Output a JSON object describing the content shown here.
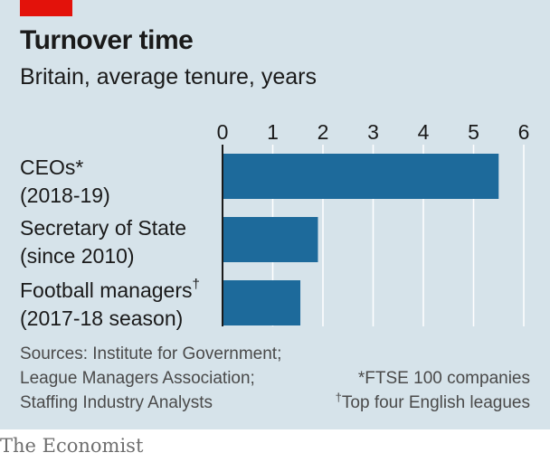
{
  "title": "Turnover time",
  "subtitle": "Britain, average tenure, years",
  "chart_data": {
    "type": "bar",
    "orientation": "horizontal",
    "categories": [
      {
        "line1": "CEOs*",
        "line2": "(2018-19)",
        "mark": ""
      },
      {
        "line1": "Secretary of State",
        "line2": "(since 2010)",
        "mark": ""
      },
      {
        "line1": "Football managers",
        "line2": "(2017-18 season)",
        "mark": "†"
      }
    ],
    "values": [
      5.5,
      1.9,
      1.55
    ],
    "xlim": [
      0,
      6
    ],
    "xticks": [
      "0",
      "1",
      "2",
      "3",
      "4",
      "5",
      "6"
    ],
    "tick_position": "top",
    "grid": true,
    "bar_color": "#1d6a9b",
    "grid_color": "#ffffff"
  },
  "sources": [
    "Sources: Institute for Government;",
    "League Managers Association;",
    "Staffing Industry Analysts"
  ],
  "footnotes": [
    {
      "mark": "",
      "text": "*FTSE 100 companies"
    },
    {
      "mark": "†",
      "text": "Top four English leagues"
    }
  ],
  "brand": "The Economist",
  "colors": {
    "panel": "#d6e3ea",
    "accent": "#e3120b",
    "text": "#1a1a1a"
  }
}
